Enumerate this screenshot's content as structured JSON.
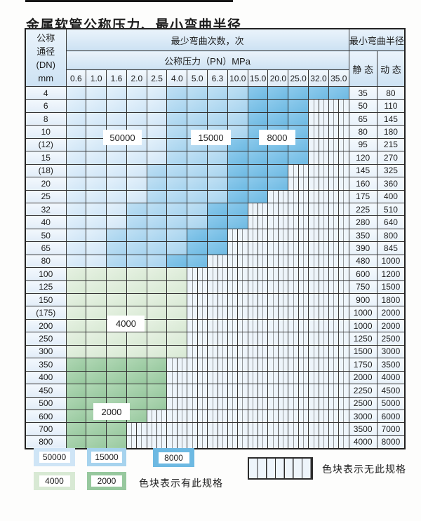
{
  "title": "金属软管公称压力、最小弯曲半径",
  "colors": {
    "c50": "#cfe5f6",
    "c15": "#a6d3ee",
    "c80": "#6db9e2",
    "c40": "#d8e9d4",
    "c20": "#97c89e",
    "hatchbg": "#eef5fb"
  },
  "table": {
    "header": {
      "dn_lines": [
        "公称",
        "通径",
        "(DN)",
        "mm"
      ],
      "bend_cycles": "最少弯曲次数，次",
      "pressure": "公称压力（PN）MPa",
      "radius": "最小弯曲半径",
      "static": "静 态",
      "dynamic": "动 态",
      "pressures": [
        "0.6",
        "1.0",
        "1.6",
        "2.0",
        "2.5",
        "4.0",
        "5.0",
        "6.3",
        "10.0",
        "15.0",
        "20.0",
        "25.0",
        "32.0",
        "35.0"
      ]
    },
    "rows": [
      {
        "dn": "4",
        "bands": [
          [
            "50000",
            5
          ],
          [
            "15000",
            4
          ],
          [
            "8000",
            5
          ]
        ],
        "static": "35",
        "dynamic": "80"
      },
      {
        "dn": "6",
        "bands": [
          [
            "50000",
            5
          ],
          [
            "15000",
            4
          ],
          [
            "8000",
            3
          ]
        ],
        "static": "50",
        "dynamic": "110"
      },
      {
        "dn": "8",
        "bands": [
          [
            "50000",
            5
          ],
          [
            "15000",
            4
          ],
          [
            "8000",
            3
          ]
        ],
        "static": "65",
        "dynamic": "145"
      },
      {
        "dn": "10",
        "bands": [
          [
            "50000",
            5
          ],
          [
            "15000",
            4
          ],
          [
            "8000",
            3
          ]
        ],
        "static": "80",
        "dynamic": "180"
      },
      {
        "dn": "(12)",
        "bands": [
          [
            "50000",
            5
          ],
          [
            "15000",
            3
          ],
          [
            "8000",
            4
          ]
        ],
        "static": "95",
        "dynamic": "215"
      },
      {
        "dn": "15",
        "bands": [
          [
            "50000",
            5
          ],
          [
            "15000",
            3
          ],
          [
            "8000",
            4
          ]
        ],
        "static": "120",
        "dynamic": "270"
      },
      {
        "dn": "(18)",
        "bands": [
          [
            "50000",
            4
          ],
          [
            "15000",
            4
          ],
          [
            "8000",
            3
          ]
        ],
        "static": "145",
        "dynamic": "325"
      },
      {
        "dn": "20",
        "bands": [
          [
            "50000",
            4
          ],
          [
            "15000",
            4
          ],
          [
            "8000",
            3
          ]
        ],
        "static": "160",
        "dynamic": "360"
      },
      {
        "dn": "25",
        "bands": [
          [
            "50000",
            4
          ],
          [
            "15000",
            4
          ],
          [
            "8000",
            2
          ]
        ],
        "static": "175",
        "dynamic": "400"
      },
      {
        "dn": "32",
        "bands": [
          [
            "50000",
            3
          ],
          [
            "15000",
            4
          ],
          [
            "8000",
            2
          ]
        ],
        "static": "225",
        "dynamic": "510"
      },
      {
        "dn": "40",
        "bands": [
          [
            "50000",
            3
          ],
          [
            "15000",
            4
          ],
          [
            "8000",
            2
          ]
        ],
        "static": "280",
        "dynamic": "640"
      },
      {
        "dn": "50",
        "bands": [
          [
            "50000",
            2
          ],
          [
            "15000",
            4
          ],
          [
            "8000",
            2
          ]
        ],
        "static": "350",
        "dynamic": "800"
      },
      {
        "dn": "65",
        "bands": [
          [
            "50000",
            2
          ],
          [
            "15000",
            4
          ],
          [
            "8000",
            2
          ]
        ],
        "static": "390",
        "dynamic": "845"
      },
      {
        "dn": "80",
        "bands": [
          [
            "50000",
            2
          ],
          [
            "15000",
            3
          ],
          [
            "8000",
            2
          ]
        ],
        "static": "480",
        "dynamic": "1000"
      },
      {
        "dn": "100",
        "bands": [
          [
            "4000",
            6
          ]
        ],
        "static": "600",
        "dynamic": "1200"
      },
      {
        "dn": "125",
        "bands": [
          [
            "4000",
            6
          ]
        ],
        "static": "750",
        "dynamic": "1500"
      },
      {
        "dn": "150",
        "bands": [
          [
            "4000",
            6
          ]
        ],
        "static": "900",
        "dynamic": "1800"
      },
      {
        "dn": "(175)",
        "bands": [
          [
            "4000",
            6
          ]
        ],
        "static": "1000",
        "dynamic": "2000"
      },
      {
        "dn": "200",
        "bands": [
          [
            "4000",
            6
          ]
        ],
        "static": "1000",
        "dynamic": "2000"
      },
      {
        "dn": "250",
        "bands": [
          [
            "4000",
            6
          ]
        ],
        "static": "1250",
        "dynamic": "2500"
      },
      {
        "dn": "300",
        "bands": [
          [
            "4000",
            6
          ]
        ],
        "static": "1500",
        "dynamic": "3000"
      },
      {
        "dn": "350",
        "bands": [
          [
            "2000",
            5
          ]
        ],
        "static": "1750",
        "dynamic": "3500"
      },
      {
        "dn": "400",
        "bands": [
          [
            "2000",
            5
          ]
        ],
        "static": "2000",
        "dynamic": "4000"
      },
      {
        "dn": "450",
        "bands": [
          [
            "2000",
            5
          ]
        ],
        "static": "2250",
        "dynamic": "4500"
      },
      {
        "dn": "500",
        "bands": [
          [
            "2000",
            5
          ]
        ],
        "static": "2500",
        "dynamic": "5000"
      },
      {
        "dn": "600",
        "bands": [
          [
            "2000",
            4
          ]
        ],
        "static": "3000",
        "dynamic": "6000"
      },
      {
        "dn": "700",
        "bands": [
          [
            "2000",
            3
          ]
        ],
        "static": "3500",
        "dynamic": "7000"
      },
      {
        "dn": "800",
        "bands": [
          [
            "2000",
            3
          ]
        ],
        "static": "4000",
        "dynamic": "8000"
      }
    ]
  },
  "overlays": {
    "label_50000": "50000",
    "label_15000": "15000",
    "label_8000": "8000",
    "label_4000": "4000",
    "label_2000": "2000"
  },
  "legend": {
    "items": [
      {
        "value": "50000"
      },
      {
        "value": "15000"
      },
      {
        "value": "8000"
      },
      {
        "value": "4000"
      },
      {
        "value": "2000"
      }
    ],
    "has_spec_text": "色块表示有此规格",
    "no_spec_text": "色块表示无此规格"
  }
}
